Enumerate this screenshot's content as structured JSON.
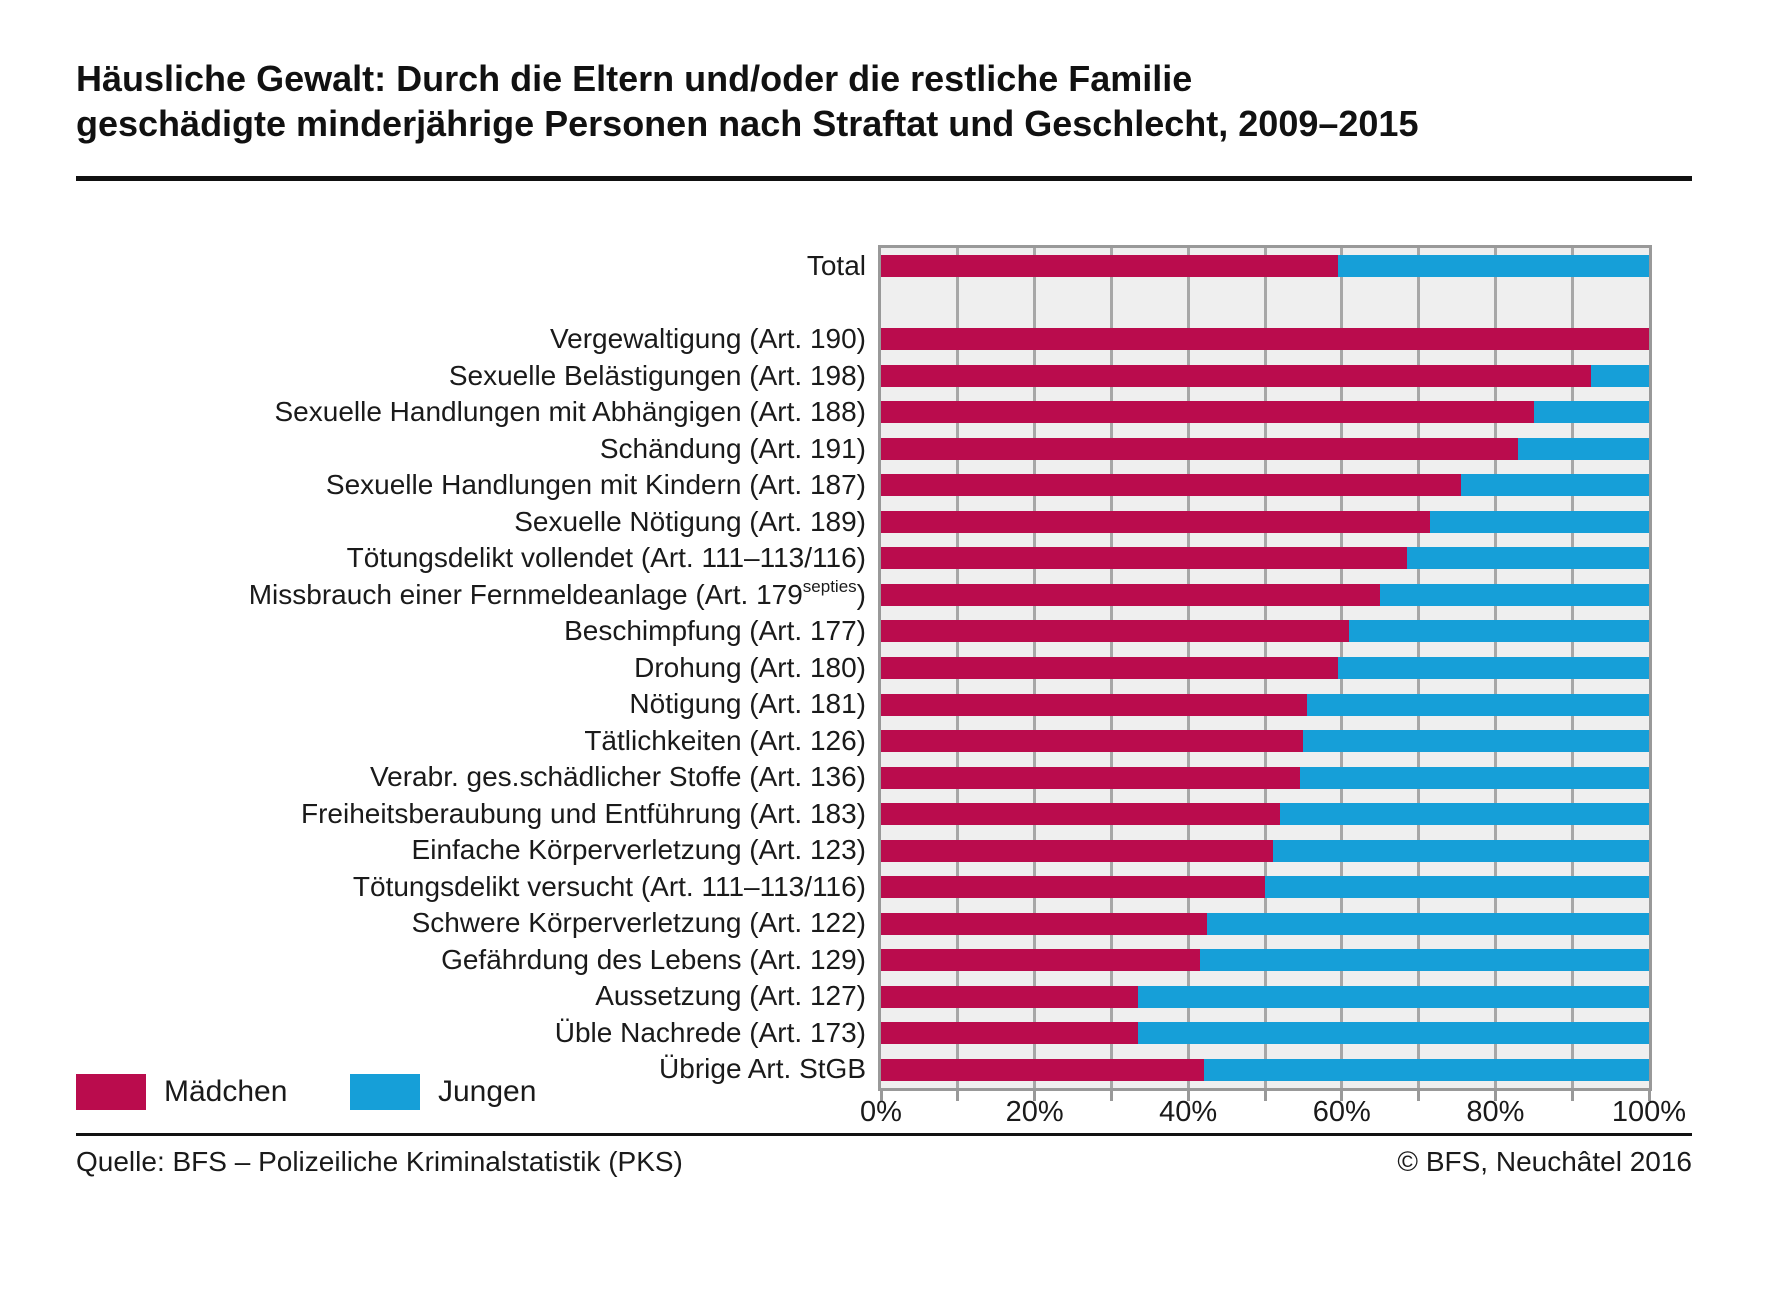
{
  "title": {
    "line1": "Häusliche Gewalt: Durch die Eltern und/oder die restliche Familie",
    "line2": "geschädigte minderjährige Personen nach Straftat und Geschlecht, 2009–2015"
  },
  "chart_data": {
    "type": "bar",
    "stacked": true,
    "orientation": "horizontal",
    "unit": "percent",
    "xlim": [
      0,
      100
    ],
    "grid_step_pct": 10,
    "grid": "on",
    "legend_position": "bottom-left",
    "x_ticks": [
      "0%",
      "20%",
      "40%",
      "60%",
      "80%",
      "100%"
    ],
    "series_names": [
      "Mädchen",
      "Jungen"
    ],
    "total_row": {
      "label": "Total",
      "maedchen": 59.5,
      "jungen": 40.5
    },
    "categories": [
      {
        "label": "Vergewaltigung (Art. 190)",
        "maedchen": 100,
        "jungen": 0
      },
      {
        "label": "Sexuelle Belästigungen (Art. 198)",
        "maedchen": 92.5,
        "jungen": 7.5
      },
      {
        "label": "Sexuelle Handlungen mit Abhängigen (Art. 188)",
        "maedchen": 85,
        "jungen": 15
      },
      {
        "label": "Schändung (Art. 191)",
        "maedchen": 83,
        "jungen": 17
      },
      {
        "label": "Sexuelle Handlungen mit Kindern (Art. 187)",
        "maedchen": 75.5,
        "jungen": 24.5
      },
      {
        "label": "Sexuelle Nötigung (Art. 189)",
        "maedchen": 71.5,
        "jungen": 28.5
      },
      {
        "label": "Tötungsdelikt vollendet (Art. 111–113/116)",
        "maedchen": 68.5,
        "jungen": 31.5
      },
      {
        "label": "Missbrauch einer Fernmeldeanlage (Art. 179",
        "label_sup": "septies",
        "label_suffix": ")",
        "maedchen": 65,
        "jungen": 35
      },
      {
        "label": "Beschimpfung (Art. 177)",
        "maedchen": 61,
        "jungen": 39
      },
      {
        "label": "Drohung (Art. 180)",
        "maedchen": 59.5,
        "jungen": 40.5
      },
      {
        "label": "Nötigung (Art. 181)",
        "maedchen": 55.5,
        "jungen": 44.5
      },
      {
        "label": "Tätlichkeiten (Art. 126)",
        "maedchen": 55,
        "jungen": 45
      },
      {
        "label": "Verabr. ges.schädlicher Stoffe (Art. 136)",
        "maedchen": 54.5,
        "jungen": 45.5
      },
      {
        "label": "Freiheitsberaubung und Entführung (Art. 183)",
        "maedchen": 52,
        "jungen": 48
      },
      {
        "label": "Einfache Körperverletzung (Art. 123)",
        "maedchen": 51,
        "jungen": 49
      },
      {
        "label": "Tötungsdelikt versucht (Art. 111–113/116)",
        "maedchen": 50,
        "jungen": 50
      },
      {
        "label": "Schwere Körperverletzung (Art. 122)",
        "maedchen": 42.5,
        "jungen": 57.5
      },
      {
        "label": "Gefährdung des Lebens (Art. 129)",
        "maedchen": 41.5,
        "jungen": 58.5
      },
      {
        "label": "Aussetzung (Art. 127)",
        "maedchen": 33.5,
        "jungen": 66.5
      },
      {
        "label": "Üble Nachrede (Art. 173)",
        "maedchen": 33.5,
        "jungen": 66.5
      },
      {
        "label": "Übrige Art. StGB",
        "maedchen": 42,
        "jungen": 58
      }
    ]
  },
  "legend": {
    "items": [
      {
        "label": "Mädchen",
        "color": "#BA0C4D"
      },
      {
        "label": "Jungen",
        "color": "#169FD8"
      }
    ]
  },
  "footer": {
    "source": "Quelle: BFS – Polizeiliche Kriminalstatistik (PKS)",
    "copyright": "© BFS, Neuchâtel 2016"
  },
  "colors": {
    "maedchen": "#BA0C4D",
    "jungen": "#169FD8",
    "plot_background": "#EFEFEF",
    "gridline": "#A7A7A7",
    "plot_border": "#999999",
    "text": "#1A1A1A",
    "rule": "#111111"
  }
}
